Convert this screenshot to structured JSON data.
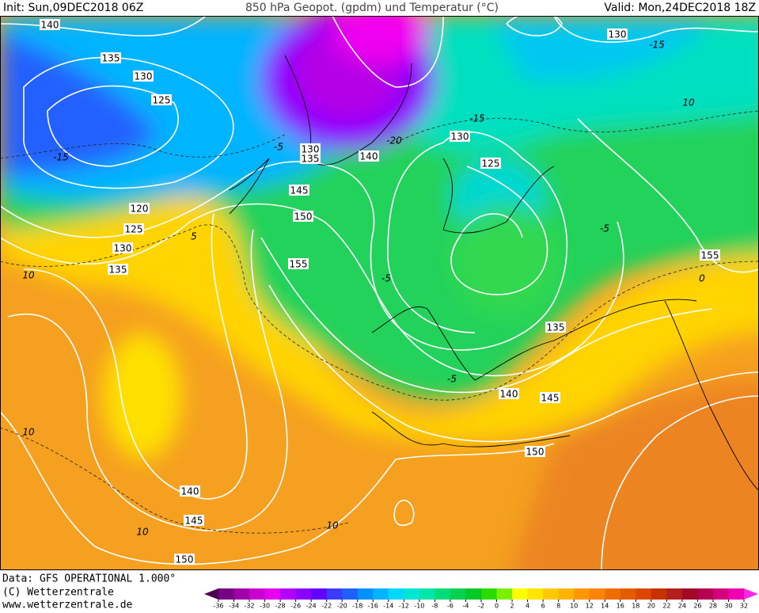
{
  "header": {
    "init": "Init: Sun,09DEC2018 06Z",
    "title": "850 hPa Geopot. (gpdm) und Temperatur (°C)",
    "valid": "Valid: Mon,24DEC2018 18Z"
  },
  "footer": {
    "data": "Data: GFS OPERATIONAL 1.000°",
    "copyright": "(C) Wetterzentrale",
    "url": "www.wetterzentrale.de"
  },
  "geopotential_labels": [
    "140",
    "135",
    "130",
    "125",
    "130",
    "135",
    "140",
    "145",
    "150",
    "155",
    "120",
    "125",
    "130",
    "135",
    "130",
    "125",
    "135",
    "140",
    "145",
    "150",
    "155",
    "140",
    "145",
    "150",
    "130"
  ],
  "temperature_labels": [
    "-15",
    "-15",
    "-15",
    "-20",
    "-5",
    "5",
    "10",
    "10",
    "10",
    "10",
    "10",
    "0",
    "-5",
    "-5",
    "-5"
  ],
  "colorbar": {
    "ticks": [
      -36,
      -34,
      -32,
      -30,
      -28,
      -26,
      -24,
      -22,
      -20,
      -18,
      -16,
      -14,
      -12,
      -10,
      -8,
      -6,
      -4,
      -2,
      0,
      2,
      4,
      6,
      8,
      10,
      12,
      14,
      16,
      18,
      20,
      22,
      24,
      26,
      28,
      30,
      32
    ],
    "colors": [
      "#4d0052",
      "#780082",
      "#a000a8",
      "#c800d0",
      "#e600f0",
      "#b400ff",
      "#8c00ff",
      "#6400ff",
      "#3c3cff",
      "#2060ff",
      "#0090ff",
      "#00b4ff",
      "#00d8ff",
      "#00e6d2",
      "#00e6aa",
      "#00dc78",
      "#00d250",
      "#00c828",
      "#28dc00",
      "#78f000",
      "#ffff00",
      "#ffe600",
      "#ffc800",
      "#ffb400",
      "#ff9600",
      "#ff8200",
      "#f06e00",
      "#e65a00",
      "#dc4600",
      "#c83200",
      "#b41e1e",
      "#a00a28",
      "#b40050",
      "#d2007d",
      "#f000b4",
      "#ff28e6"
    ]
  }
}
